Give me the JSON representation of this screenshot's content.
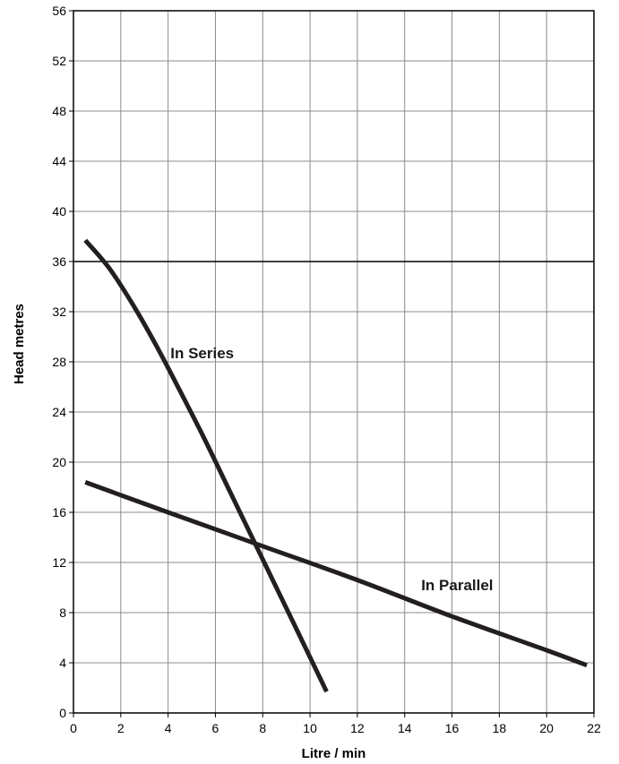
{
  "chart_data": {
    "type": "line",
    "title": "",
    "xlabel": "Litre / min",
    "ylabel": "Head metres",
    "xlim": [
      0,
      22
    ],
    "ylim": [
      0,
      56
    ],
    "xticks": [
      "0",
      "2",
      "4",
      "6",
      "8",
      "10",
      "12",
      "14",
      "16",
      "18",
      "20",
      "22"
    ],
    "yticks": [
      "0",
      "4",
      "8",
      "12",
      "16",
      "20",
      "24",
      "28",
      "32",
      "36",
      "40",
      "44",
      "48",
      "52",
      "56"
    ],
    "grid": true,
    "reference_line_y": 36,
    "series": [
      {
        "name": "In Series",
        "color": "#231f20",
        "x": [
          0.5,
          1.5,
          2.5,
          3.5,
          4.5,
          5.5,
          6.5,
          7.5,
          8.5,
          9.5,
          10.7
        ],
        "y": [
          37.7,
          35.5,
          32.6,
          29.3,
          25.7,
          22.0,
          18.1,
          14.2,
          10.3,
          6.4,
          1.7
        ]
      },
      {
        "name": "In Parallel",
        "color": "#231f20",
        "x": [
          0.5,
          4,
          8,
          12,
          16,
          20,
          21.7
        ],
        "y": [
          18.4,
          16.0,
          13.3,
          10.6,
          7.7,
          5.0,
          3.8
        ]
      }
    ]
  }
}
